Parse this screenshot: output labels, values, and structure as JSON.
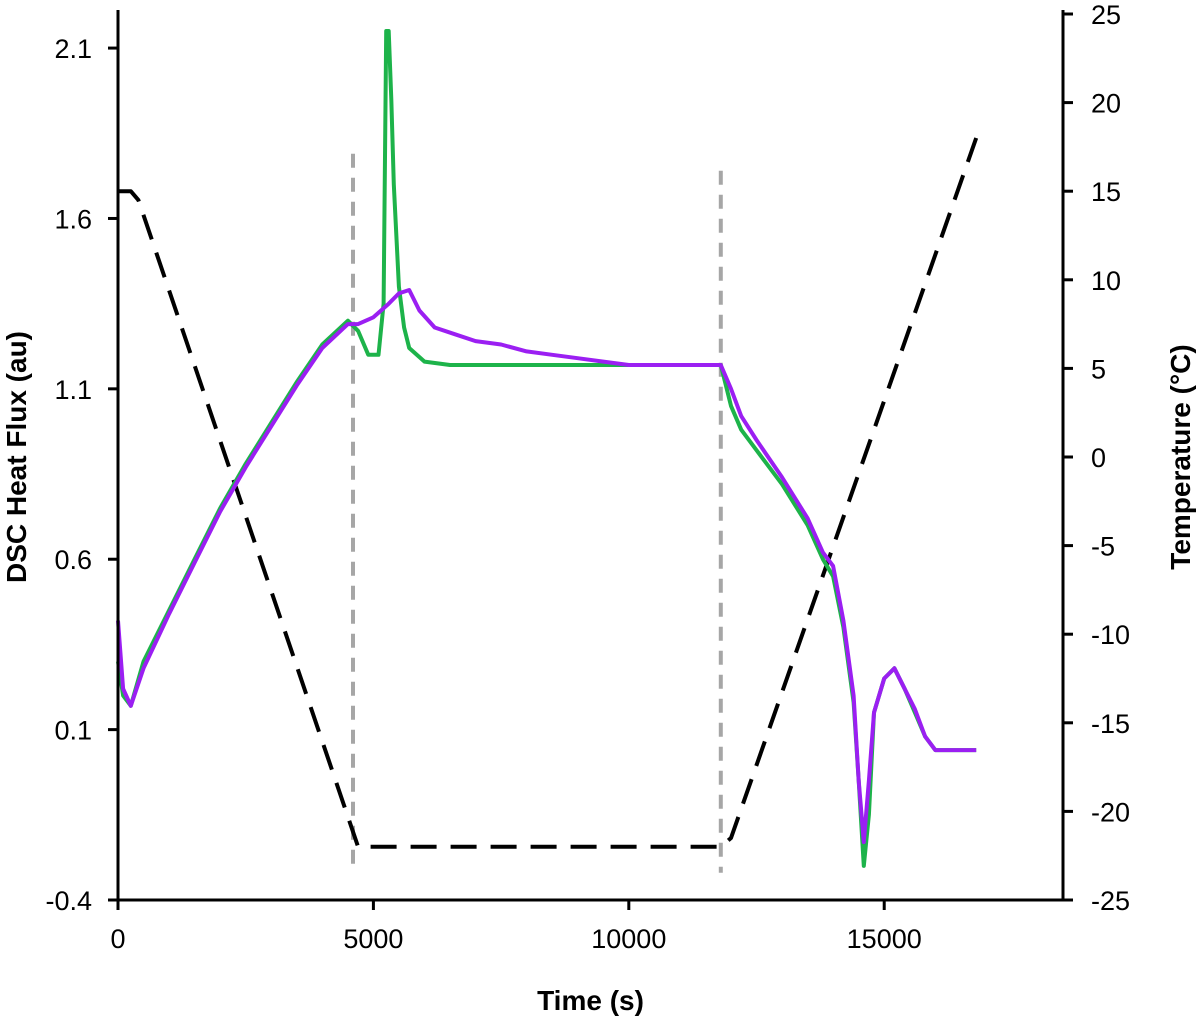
{
  "chart_data": {
    "type": "line",
    "xlabel": "Time (s)",
    "ylabel": "DSC Heat Flux (au)",
    "y2label": "Temperature (°C)",
    "xlim": [
      0,
      18500
    ],
    "ylim": [
      -0.4,
      2.2
    ],
    "y2lim": [
      -25,
      25
    ],
    "x_ticks": [
      "0",
      "5000",
      "10000",
      "15000"
    ],
    "x_tick_values": [
      0,
      5000,
      10000,
      15000
    ],
    "y_ticks": [
      "-0.4",
      "0.1",
      "0.6",
      "1.1",
      "1.6",
      "2.1"
    ],
    "y_tick_values": [
      -0.4,
      0.1,
      0.6,
      1.1,
      1.6,
      2.1
    ],
    "y2_ticks": [
      "-25",
      "-20",
      "-15",
      "-10",
      "-5",
      "0",
      "5",
      "10",
      "15",
      "20",
      "25"
    ],
    "y2_tick_values": [
      -25,
      -20,
      -15,
      -10,
      -5,
      0,
      5,
      10,
      15,
      20,
      25
    ],
    "grid": false,
    "legend": "none",
    "series": [
      {
        "axis": "left",
        "color": "#1db34a",
        "style": "solid",
        "x": [
          0,
          100,
          250,
          500,
          1000,
          1500,
          2000,
          2500,
          3000,
          3500,
          4000,
          4500,
          4700,
          4900,
          5100,
          5200,
          5250,
          5300,
          5350,
          5400,
          5500,
          5600,
          5700,
          6000,
          6500,
          7000,
          8000,
          9000,
          10000,
          11000,
          11800,
          12000,
          12200,
          12500,
          13000,
          13500,
          13800,
          14000,
          14200,
          14400,
          14500,
          14600,
          14700,
          14800,
          15000,
          15200,
          15400,
          15600,
          15800,
          16000,
          16300,
          16800
        ],
        "y": [
          0.3,
          0.2,
          0.17,
          0.3,
          0.45,
          0.6,
          0.75,
          0.88,
          1.0,
          1.12,
          1.23,
          1.3,
          1.27,
          1.2,
          1.2,
          1.35,
          2.15,
          2.15,
          1.95,
          1.7,
          1.4,
          1.28,
          1.22,
          1.18,
          1.17,
          1.17,
          1.17,
          1.17,
          1.17,
          1.17,
          1.17,
          1.05,
          0.98,
          0.92,
          0.82,
          0.7,
          0.6,
          0.55,
          0.4,
          0.18,
          -0.05,
          -0.3,
          -0.15,
          0.15,
          0.25,
          0.28,
          0.22,
          0.15,
          0.08,
          0.04,
          0.04,
          0.04
        ]
      },
      {
        "axis": "left",
        "color": "#9b1ff2",
        "style": "solid",
        "x": [
          0,
          100,
          250,
          500,
          1000,
          1500,
          2000,
          2500,
          3000,
          3500,
          4000,
          4500,
          4700,
          5000,
          5300,
          5500,
          5700,
          5900,
          6200,
          6600,
          7000,
          7500,
          8000,
          8500,
          9000,
          9500,
          10000,
          11000,
          11800,
          12000,
          12200,
          12500,
          13000,
          13500,
          13800,
          14000,
          14200,
          14400,
          14500,
          14600,
          14700,
          14800,
          15000,
          15200,
          15400,
          15600,
          15800,
          16000,
          16300,
          16800
        ],
        "y": [
          0.42,
          0.22,
          0.17,
          0.28,
          0.44,
          0.59,
          0.74,
          0.87,
          0.99,
          1.11,
          1.22,
          1.29,
          1.29,
          1.31,
          1.35,
          1.38,
          1.39,
          1.33,
          1.28,
          1.26,
          1.24,
          1.23,
          1.21,
          1.2,
          1.19,
          1.18,
          1.17,
          1.17,
          1.17,
          1.1,
          1.02,
          0.95,
          0.84,
          0.72,
          0.62,
          0.58,
          0.42,
          0.2,
          -0.05,
          -0.23,
          -0.05,
          0.15,
          0.25,
          0.28,
          0.22,
          0.16,
          0.08,
          0.04,
          0.04,
          0.04
        ]
      },
      {
        "axis": "right",
        "color": "#000000",
        "style": "dashed",
        "x": [
          0,
          250,
          400,
          4700,
          11800,
          12000,
          16800
        ],
        "y": [
          15,
          15,
          14.5,
          -22,
          -22,
          -21.5,
          18
        ]
      },
      {
        "axis": "left",
        "color": "#a6a6a6",
        "style": "dashed",
        "x": [
          4600,
          4600
        ],
        "y": [
          1.79,
          -0.32
        ]
      },
      {
        "axis": "left",
        "color": "#a6a6a6",
        "style": "dashed",
        "x": [
          11800,
          11800
        ],
        "y": [
          1.74,
          -0.32
        ]
      }
    ]
  }
}
